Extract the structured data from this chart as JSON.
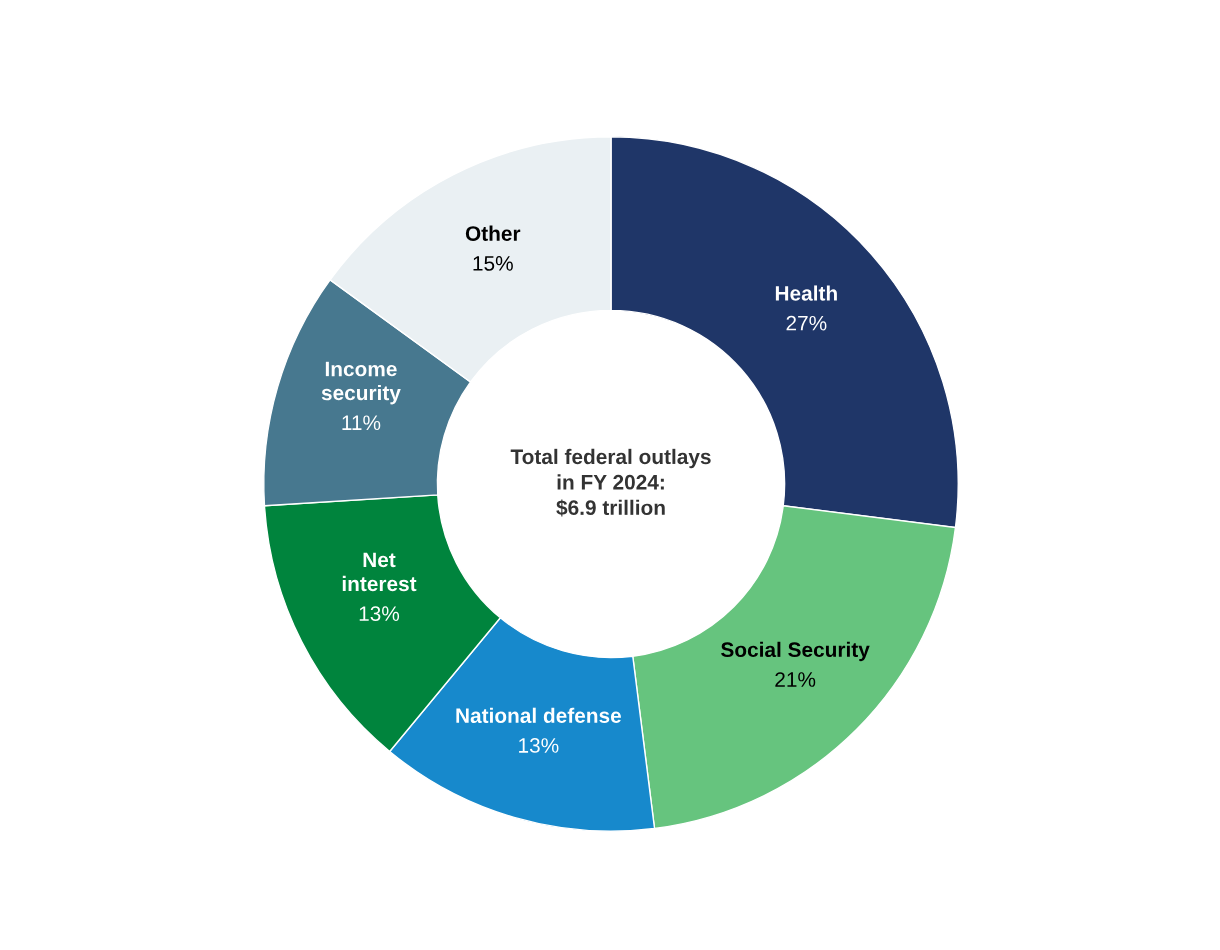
{
  "chart_data": {
    "type": "donut",
    "categories": [
      "Health",
      "Social Security",
      "National defense",
      "Net\ninterest",
      "Income\nsecurity",
      "Other"
    ],
    "values": [
      27,
      21,
      13,
      13,
      11,
      15
    ],
    "colors": [
      "#1f3668",
      "#66c47e",
      "#1789cc",
      "#00843d",
      "#47788f",
      "#eaf0f3"
    ],
    "value_labels": [
      "27%",
      "21%",
      "13%",
      "13%",
      "11%",
      "15%"
    ],
    "annotations": [
      "Total federal outlays\nin FY 2024:\n$6.9 trillion"
    ],
    "legend": false
  }
}
